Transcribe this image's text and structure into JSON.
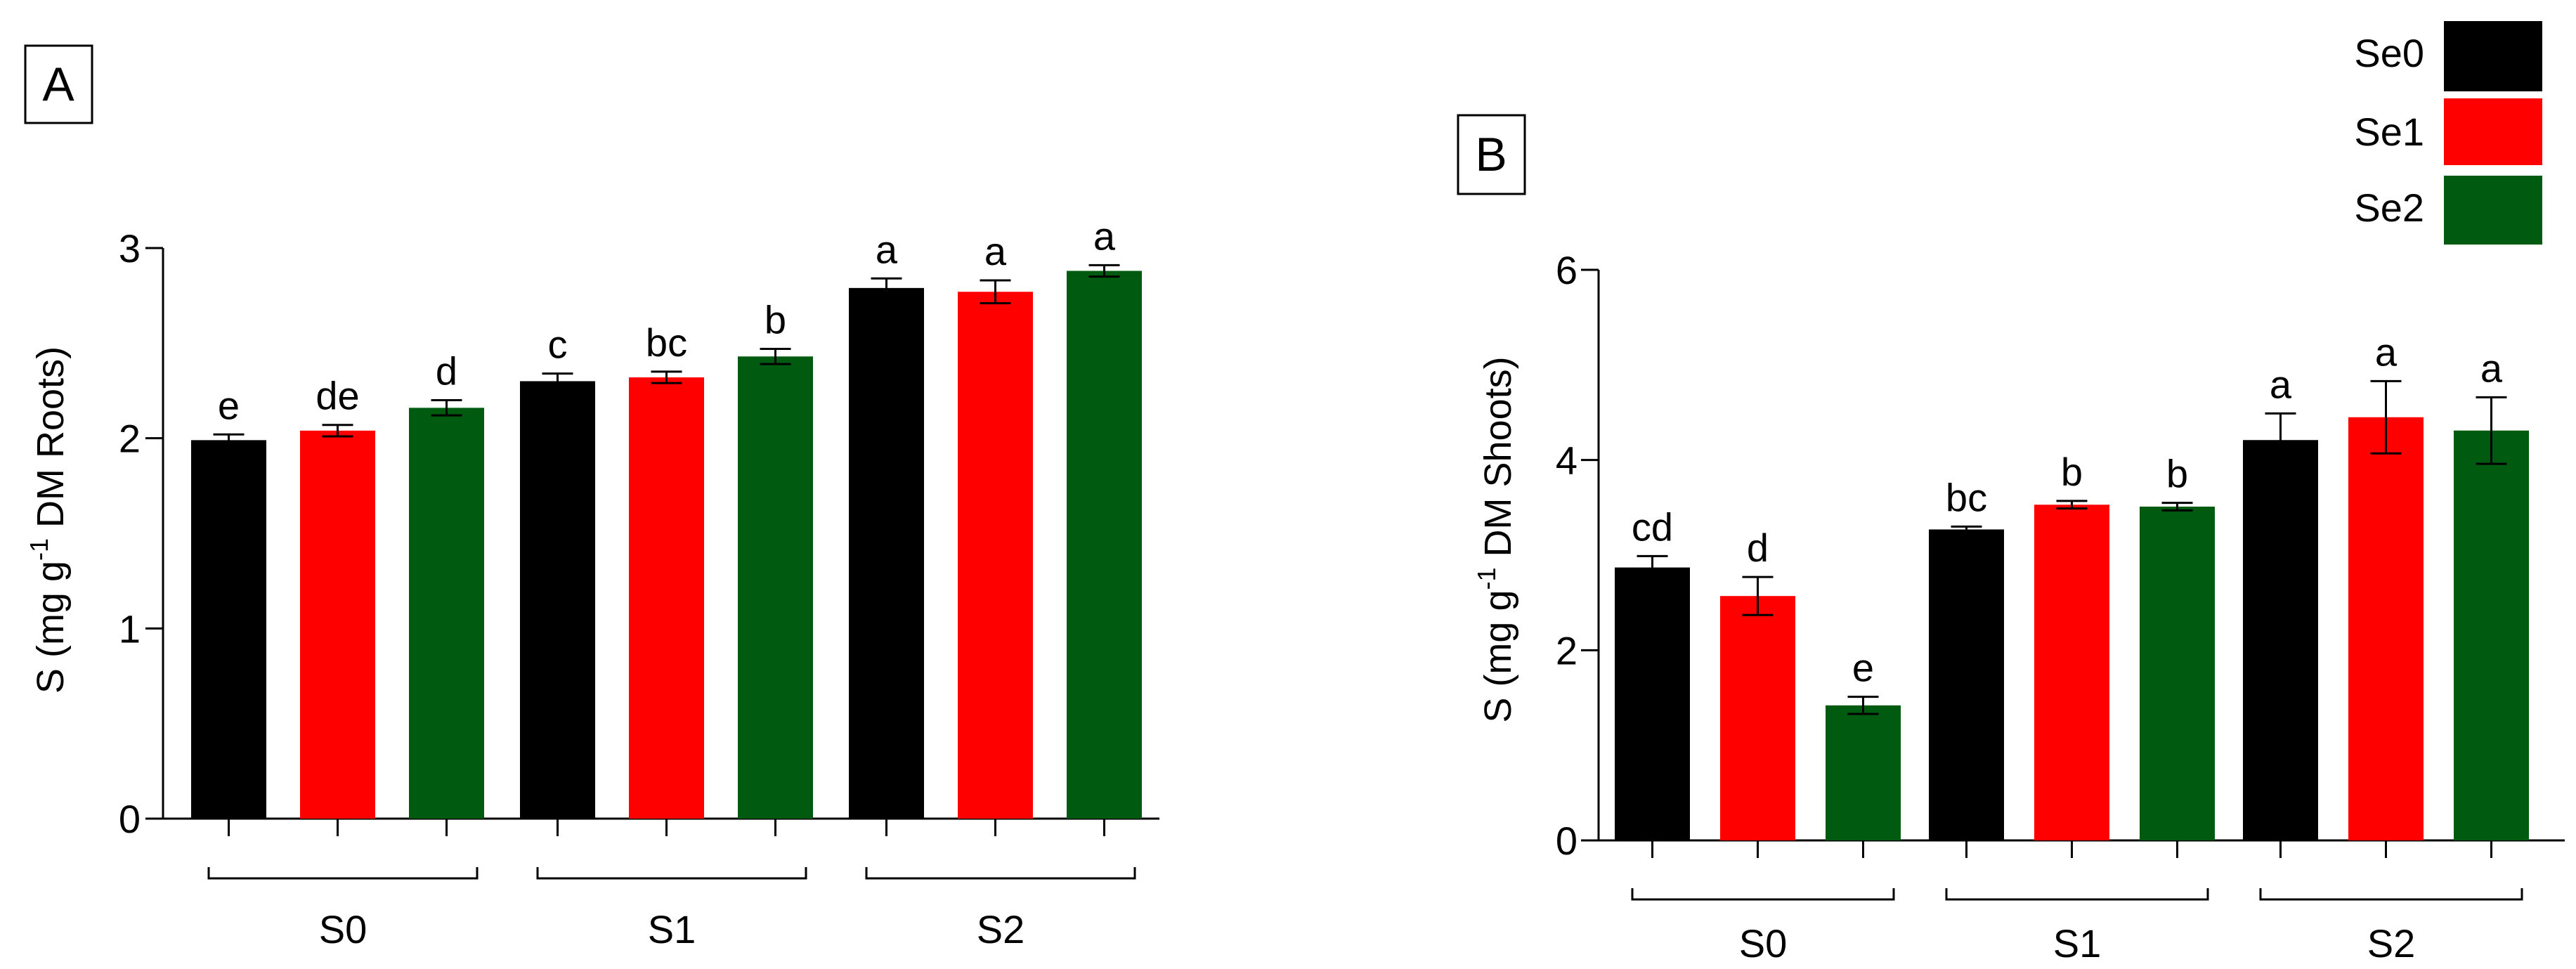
{
  "legend": [
    {
      "label": "Se0",
      "color": "#000000"
    },
    {
      "label": "Se1",
      "color": "#ff0000"
    },
    {
      "label": "Se2",
      "color": "#005a10"
    }
  ],
  "chart_data": [
    {
      "panel": "A",
      "type": "bar",
      "title": "",
      "ylabel_prefix": "S (mg g",
      "ylabel_sup": "-1",
      "ylabel_suffix": " DM Roots)",
      "ylim": [
        0,
        3
      ],
      "yticks": [
        "0",
        "1",
        "2",
        "3"
      ],
      "groups": [
        "S0",
        "S1",
        "S2"
      ],
      "series": [
        {
          "name": "Se0",
          "color": "#000000",
          "values": [
            1.99,
            2.3,
            2.79
          ],
          "errors": [
            0.03,
            0.04,
            0.05
          ],
          "letters": [
            "e",
            "c",
            "a"
          ]
        },
        {
          "name": "Se1",
          "color": "#ff0000",
          "values": [
            2.04,
            2.32,
            2.77
          ],
          "errors": [
            0.03,
            0.03,
            0.06
          ],
          "letters": [
            "de",
            "bc",
            "a"
          ]
        },
        {
          "name": "Se2",
          "color": "#005a10",
          "values": [
            2.16,
            2.43,
            2.88
          ],
          "errors": [
            0.04,
            0.04,
            0.03
          ],
          "letters": [
            "d",
            "b",
            "a"
          ]
        }
      ]
    },
    {
      "panel": "B",
      "type": "bar",
      "title": "",
      "ylabel_prefix": "S (mg g",
      "ylabel_sup": "-1",
      "ylabel_suffix": " DM Shoots)",
      "ylim": [
        0,
        6
      ],
      "yticks": [
        "0",
        "2",
        "4",
        "6"
      ],
      "groups": [
        "S0",
        "S1",
        "S2"
      ],
      "series": [
        {
          "name": "Se0",
          "color": "#000000",
          "values": [
            2.87,
            3.27,
            4.21
          ],
          "errors": [
            0.12,
            0.03,
            0.28
          ],
          "letters": [
            "cd",
            "bc",
            "a"
          ]
        },
        {
          "name": "Se1",
          "color": "#ff0000",
          "values": [
            2.57,
            3.53,
            4.45
          ],
          "errors": [
            0.2,
            0.04,
            0.38
          ],
          "letters": [
            "d",
            "b",
            "a"
          ]
        },
        {
          "name": "Se2",
          "color": "#005a10",
          "values": [
            1.42,
            3.51,
            4.31
          ],
          "errors": [
            0.09,
            0.04,
            0.35
          ],
          "letters": [
            "e",
            "b",
            "a"
          ]
        }
      ]
    }
  ]
}
